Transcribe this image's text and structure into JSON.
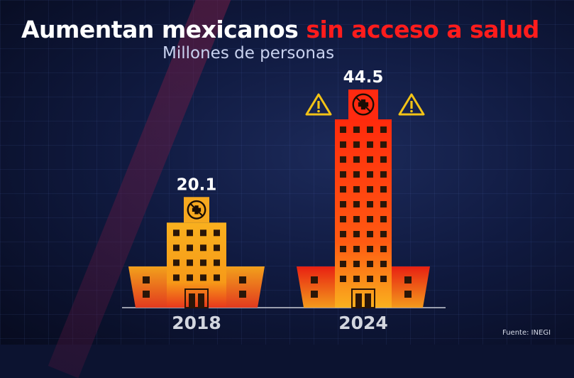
{
  "title_part1": "Aumentan mexicanos",
  "title_part2": "sin acceso a salud",
  "subtitle": "Millones de personas",
  "source": "Fuente: INEGI",
  "colors": {
    "title_white": "#ffffff",
    "title_red": "#ff1c1c",
    "subtitle": "#c9d2ef",
    "building_2018": "#f5a623",
    "building_2024": "#ff2a10",
    "warning": "#f3c316"
  },
  "icons": [
    "hospital-cross-icon",
    "warning-icon"
  ],
  "chart_data": {
    "type": "bar",
    "categories": [
      "2018",
      "2024"
    ],
    "values": [
      20.1,
      44.5
    ],
    "value_labels": [
      "20.1",
      "44.5"
    ],
    "title": "Aumentan mexicanos sin acceso a salud",
    "subtitle": "Millones de personas",
    "ylabel": "Millones de personas",
    "bar_style": "hospital buildings",
    "grid": false,
    "legend": "none"
  }
}
